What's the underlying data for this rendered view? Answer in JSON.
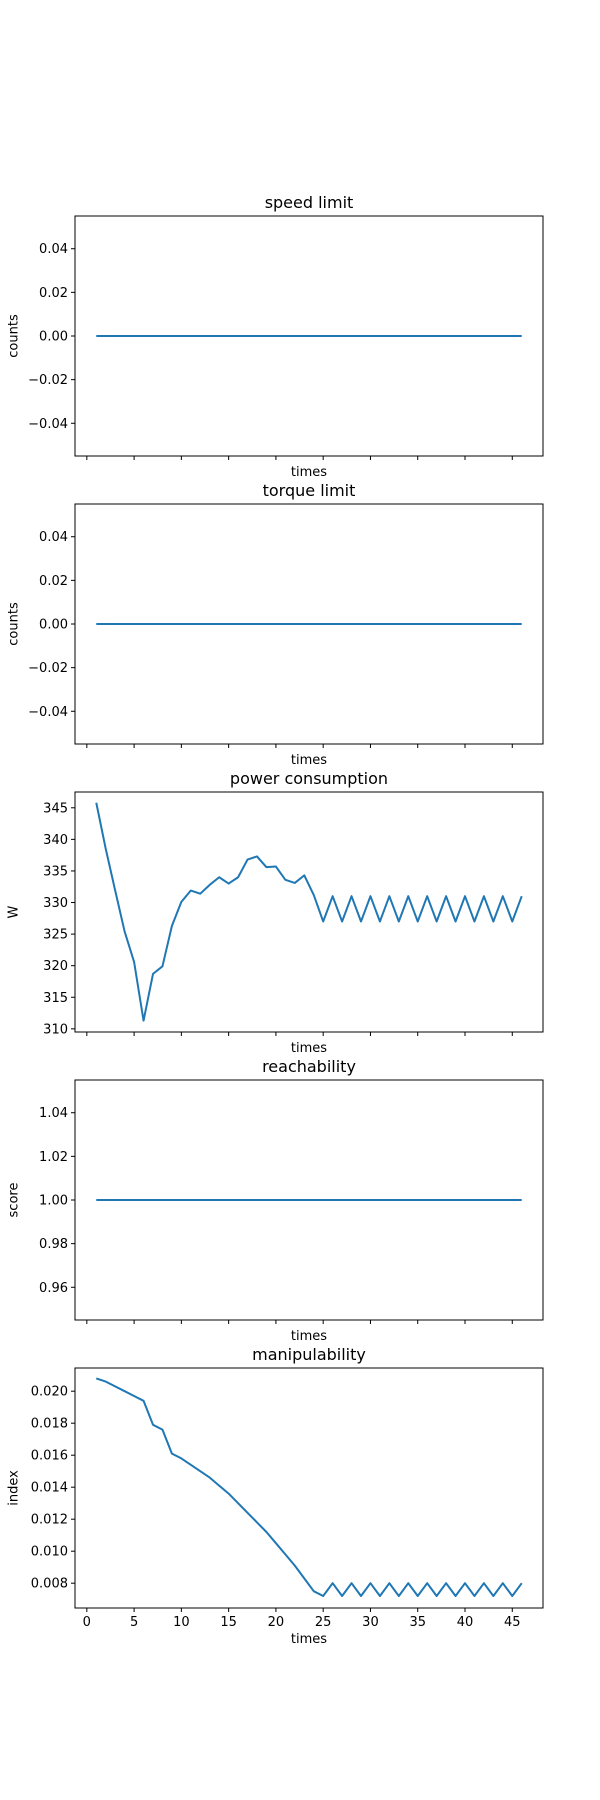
{
  "chart_data": [
    {
      "type": "line",
      "title": "speed limit",
      "xlabel": "times",
      "ylabel": "counts",
      "xlim": [
        -1.25,
        48.25
      ],
      "ylim": [
        -0.055,
        0.055
      ],
      "xticks": [
        0,
        5,
        10,
        15,
        20,
        25,
        30,
        35,
        40,
        45
      ],
      "xtick_labels_shown": false,
      "yticks": [
        -0.04,
        -0.02,
        0.0,
        0.02,
        0.04
      ],
      "ytick_labels": [
        "−0.04",
        "−0.02",
        "0.00",
        "0.02",
        "0.04"
      ],
      "series": [
        {
          "x": [
            1,
            46
          ],
          "y": [
            0,
            0
          ]
        }
      ]
    },
    {
      "type": "line",
      "title": "torque limit",
      "xlabel": "times",
      "ylabel": "counts",
      "xlim": [
        -1.25,
        48.25
      ],
      "ylim": [
        -0.055,
        0.055
      ],
      "xticks": [
        0,
        5,
        10,
        15,
        20,
        25,
        30,
        35,
        40,
        45
      ],
      "xtick_labels_shown": false,
      "yticks": [
        -0.04,
        -0.02,
        0.0,
        0.02,
        0.04
      ],
      "ytick_labels": [
        "−0.04",
        "−0.02",
        "0.00",
        "0.02",
        "0.04"
      ],
      "series": [
        {
          "x": [
            1,
            46
          ],
          "y": [
            0,
            0
          ]
        }
      ]
    },
    {
      "type": "line",
      "title": "power consumption",
      "xlabel": "times",
      "ylabel": "W",
      "xlim": [
        -1.25,
        48.25
      ],
      "ylim": [
        309.5,
        347.5
      ],
      "xticks": [
        0,
        5,
        10,
        15,
        20,
        25,
        30,
        35,
        40,
        45
      ],
      "xtick_labels_shown": false,
      "yticks": [
        310,
        315,
        320,
        325,
        330,
        335,
        340,
        345
      ],
      "ytick_labels": [
        "310",
        "315",
        "320",
        "325",
        "330",
        "335",
        "340",
        "345"
      ],
      "series": [
        {
          "x": [
            1,
            2,
            3,
            4,
            5,
            6,
            7,
            8,
            9,
            10,
            11,
            12,
            13,
            14,
            15,
            16,
            17,
            18,
            19,
            20,
            21,
            22,
            23,
            24,
            25,
            26,
            27,
            28,
            29,
            30,
            31,
            32,
            33,
            34,
            35,
            36,
            37,
            38,
            39,
            40,
            41,
            42,
            43,
            44,
            45,
            46
          ],
          "y": [
            345.8,
            338.5,
            331.9,
            325.4,
            320.6,
            311.3,
            318.7,
            319.9,
            326.3,
            330.1,
            331.9,
            331.4,
            332.8,
            334.0,
            333.0,
            334.0,
            336.8,
            337.3,
            335.6,
            335.7,
            333.6,
            333.1,
            334.3,
            331.2,
            327.0,
            331.0,
            327.0,
            331.0,
            327.0,
            331.0,
            327.0,
            331.0,
            327.0,
            331.0,
            327.0,
            331.0,
            327.0,
            331.0,
            327.0,
            331.0,
            327.0,
            331.0,
            327.0,
            331.0,
            327.0,
            331.0
          ]
        }
      ]
    },
    {
      "type": "line",
      "title": "reachability",
      "xlabel": "times",
      "ylabel": "score",
      "xlim": [
        -1.25,
        48.25
      ],
      "ylim": [
        0.945,
        1.055
      ],
      "xticks": [
        0,
        5,
        10,
        15,
        20,
        25,
        30,
        35,
        40,
        45
      ],
      "xtick_labels_shown": false,
      "yticks": [
        0.96,
        0.98,
        1.0,
        1.02,
        1.04
      ],
      "ytick_labels": [
        "0.96",
        "0.98",
        "1.00",
        "1.02",
        "1.04"
      ],
      "series": [
        {
          "x": [
            1,
            46
          ],
          "y": [
            1,
            1
          ]
        }
      ]
    },
    {
      "type": "line",
      "title": "manipulability",
      "xlabel": "times",
      "ylabel": "index",
      "xlim": [
        -1.25,
        48.25
      ],
      "ylim": [
        0.00645,
        0.02145
      ],
      "xticks": [
        0,
        5,
        10,
        15,
        20,
        25,
        30,
        35,
        40,
        45
      ],
      "xtick_labels_shown": true,
      "xtick_labels": [
        "0",
        "5",
        "10",
        "15",
        "20",
        "25",
        "30",
        "35",
        "40",
        "45"
      ],
      "yticks": [
        0.008,
        0.01,
        0.012,
        0.014,
        0.016,
        0.018,
        0.02
      ],
      "ytick_labels": [
        "0.008",
        "0.010",
        "0.012",
        "0.014",
        "0.016",
        "0.018",
        "0.020"
      ],
      "series": [
        {
          "x": [
            1,
            2,
            3,
            4,
            5,
            6,
            7,
            8,
            9,
            10,
            11,
            12,
            13,
            14,
            15,
            16,
            17,
            18,
            19,
            20,
            21,
            22,
            23,
            24,
            25,
            26,
            27,
            28,
            29,
            30,
            31,
            32,
            33,
            34,
            35,
            36,
            37,
            38,
            39,
            40,
            41,
            42,
            43,
            44,
            45,
            46
          ],
          "y": [
            0.0208,
            0.0206,
            0.0203,
            0.02,
            0.0197,
            0.0194,
            0.0179,
            0.0176,
            0.0161,
            0.0158,
            0.0154,
            0.015,
            0.0146,
            0.0141,
            0.0136,
            0.013,
            0.0124,
            0.0118,
            0.0112,
            0.0105,
            0.0098,
            0.0091,
            0.0083,
            0.0075,
            0.0072,
            0.008,
            0.0072,
            0.008,
            0.0072,
            0.008,
            0.0072,
            0.008,
            0.0072,
            0.008,
            0.0072,
            0.008,
            0.0072,
            0.008,
            0.0072,
            0.008,
            0.0072,
            0.008,
            0.0072,
            0.008,
            0.0072,
            0.008
          ]
        }
      ]
    }
  ]
}
